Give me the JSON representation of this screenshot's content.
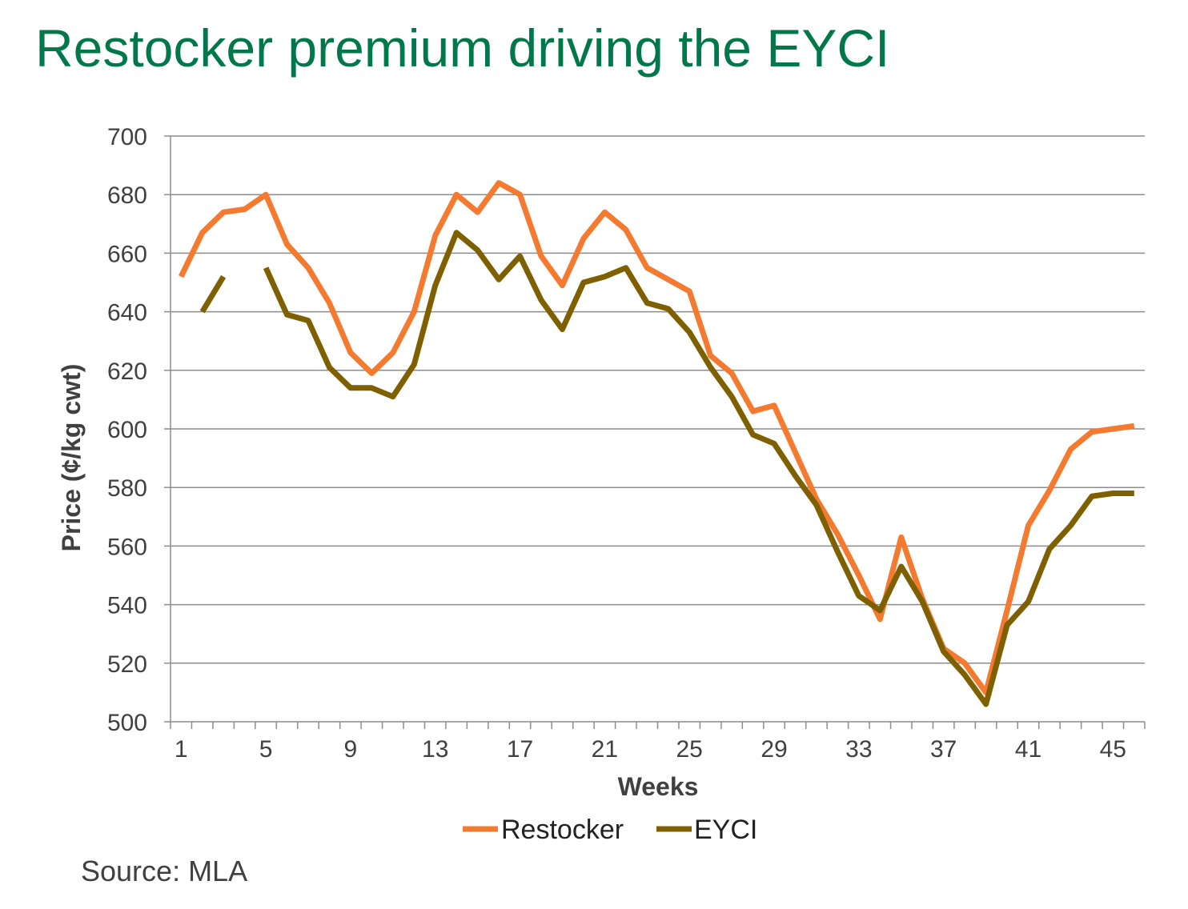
{
  "title": "Restocker premium driving the EYCI",
  "source": "Source: MLA",
  "colors": {
    "title": "#00784a",
    "restocker": "#f47a30",
    "eyci": "#7f6000"
  },
  "chart_data": {
    "type": "line",
    "xlabel": "Weeks",
    "ylabel": "Price (¢/kg cwt)",
    "xlim": [
      1,
      46
    ],
    "ylim": [
      500,
      700
    ],
    "y_ticks": [
      500,
      520,
      540,
      560,
      580,
      600,
      620,
      640,
      660,
      680,
      700
    ],
    "x_ticks": [
      1,
      5,
      9,
      13,
      17,
      21,
      25,
      29,
      33,
      37,
      41,
      45
    ],
    "grid": true,
    "legend_position": "bottom",
    "x": [
      1,
      2,
      3,
      4,
      5,
      6,
      7,
      8,
      9,
      10,
      11,
      12,
      13,
      14,
      15,
      16,
      17,
      18,
      19,
      20,
      21,
      22,
      23,
      24,
      25,
      26,
      27,
      28,
      29,
      30,
      31,
      32,
      33,
      34,
      35,
      36,
      37,
      38,
      39,
      40,
      41,
      42,
      43,
      44,
      45,
      46
    ],
    "series": [
      {
        "name": "Restocker",
        "color": "#f47a30",
        "values": [
          652,
          667,
          674,
          675,
          680,
          663,
          655,
          643,
          626,
          619,
          626,
          640,
          666,
          680,
          674,
          684,
          680,
          659,
          649,
          665,
          674,
          668,
          655,
          651,
          647,
          625,
          619,
          606,
          608,
          592,
          576,
          564,
          550,
          535,
          563,
          542,
          525,
          520,
          510,
          538,
          567,
          579,
          593,
          599,
          600,
          601
        ]
      },
      {
        "name": "EYCI",
        "color": "#7f6000",
        "values": [
          null,
          640,
          652,
          null,
          655,
          639,
          637,
          621,
          614,
          614,
          611,
          622,
          649,
          667,
          661,
          651,
          659,
          644,
          634,
          650,
          652,
          655,
          643,
          641,
          633,
          621,
          611,
          598,
          595,
          584,
          574,
          558,
          543,
          538,
          553,
          541,
          524,
          516,
          506,
          533,
          541,
          559,
          567,
          577,
          578,
          578
        ]
      }
    ]
  }
}
